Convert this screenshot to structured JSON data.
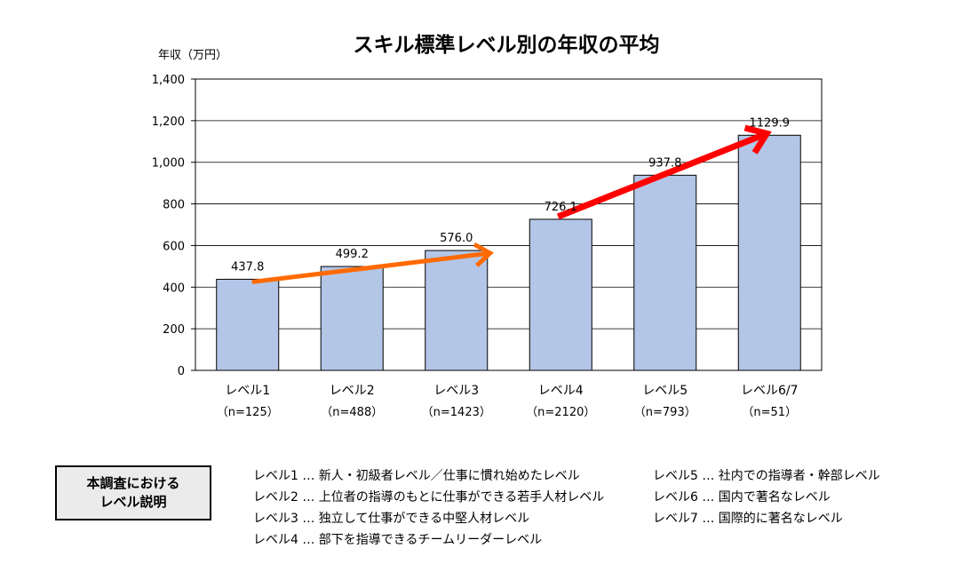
{
  "chart_data": {
    "type": "bar",
    "title": "スキル標準レベル別の年収の平均",
    "ylabel": "年収（万円）",
    "ylim": [
      0,
      1400
    ],
    "yticks": [
      "0",
      "200",
      "400",
      "600",
      "800",
      "1,000",
      "1,200",
      "1,400"
    ],
    "categories": [
      "レベル1",
      "レベル2",
      "レベル3",
      "レベル4",
      "レベル5",
      "レベル6/7"
    ],
    "sample_sizes": [
      "（n=125）",
      "（n=488）",
      "（n=1423）",
      "（n=2120）",
      "（n=793）",
      "（n=51）"
    ],
    "values": [
      437.8,
      499.2,
      576.0,
      726.1,
      937.8,
      1129.9
    ],
    "value_labels": [
      "437.8",
      "499.2",
      "576.0",
      "726.1",
      "937.8",
      "1129.9"
    ],
    "grid": true,
    "colors": {
      "bar": "#b4c6e7",
      "arrow1": "#ff6a00",
      "arrow2": "#ff0000"
    }
  },
  "legend": {
    "box_lines": [
      "本調査における",
      "レベル説明"
    ],
    "left_column": [
      "レベル1 … 新人・初級者レベル／仕事に慣れ始めたレベル",
      "レベル2 … 上位者の指導のもとに仕事ができる若手人材レベル",
      "レベル3 … 独立して仕事ができる中堅人材レベル",
      "レベル4 … 部下を指導できるチームリーダーレベル"
    ],
    "right_column": [
      "レベル5 … 社内での指導者・幹部レベル",
      "レベル6 … 国内で著名なレベル",
      "レベル7 … 国際的に著名なレベル"
    ]
  }
}
